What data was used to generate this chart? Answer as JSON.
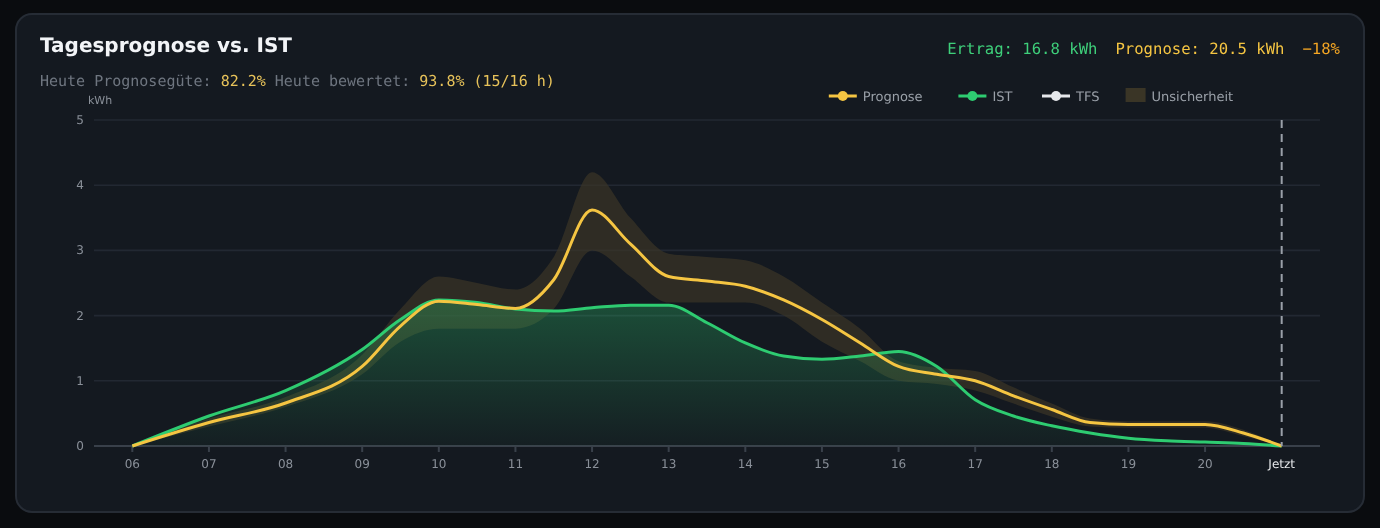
{
  "chart_data": {
    "type": "line",
    "title": "Tagesprognose vs. IST",
    "subtitle": "Heute Prognosegüte: 82.2%  Heute bewertet: 93.8% (15/16 h)",
    "ylabel": "kWh",
    "annotations": [
      "Ertrag: 16.8 kWh",
      "Prognose: 20.5 kWh",
      "−18%"
    ],
    "x": [
      6,
      7,
      8,
      9,
      9.5,
      10,
      10.5,
      11,
      11.5,
      12,
      12.5,
      13,
      13.5,
      14,
      14.5,
      15,
      15.5,
      16,
      16.5,
      17,
      17.5,
      18,
      18.5,
      19,
      19.5,
      20,
      20.5,
      21
    ],
    "xlim": [
      5.5,
      21.5
    ],
    "xticks": [
      {
        "value": 6,
        "label": "06"
      },
      {
        "value": 7,
        "label": "07"
      },
      {
        "value": 8,
        "label": "08"
      },
      {
        "value": 9,
        "label": "09"
      },
      10,
      11,
      12,
      13,
      14,
      15,
      16,
      17,
      18,
      19,
      20
    ],
    "ylim": [
      0,
      5
    ],
    "yticks": [
      0,
      1,
      2,
      3,
      4,
      5
    ],
    "grid": "y",
    "legend": "top right",
    "marker": "none",
    "ref_lines": [
      {
        "axis": "x",
        "value": 21,
        "label": "Jetzt",
        "color": "#9aa0a8",
        "line_style": "dashed"
      }
    ],
    "series": [
      {
        "name": "Prognose",
        "color": "#f5c542",
        "values": [
          0,
          0.36,
          0.66,
          1.22,
          1.84,
          2.22,
          2.17,
          2.11,
          2.55,
          3.62,
          3.1,
          2.6,
          2.53,
          2.45,
          2.24,
          1.94,
          1.58,
          1.22,
          1.1,
          1.0,
          0.77,
          0.56,
          0.36,
          0.33,
          0.33,
          0.33,
          0.2,
          0
        ]
      },
      {
        "name": "IST",
        "type": "area",
        "color": "#2ecc71",
        "values": [
          0,
          0.46,
          0.85,
          1.48,
          1.94,
          2.24,
          2.2,
          2.1,
          2.07,
          2.12,
          2.16,
          2.16,
          1.89,
          1.58,
          1.38,
          1.33,
          1.38,
          1.45,
          1.22,
          0.71,
          0.46,
          0.31,
          0.2,
          0.12,
          0.08,
          0.06,
          0.04,
          0
        ]
      },
      {
        "name": "TFS",
        "color": "#e6e8eb",
        "values": [
          null,
          null,
          null,
          null,
          null,
          null,
          null,
          null,
          null,
          null,
          null,
          null,
          null,
          null,
          null,
          null,
          null,
          null,
          null,
          null,
          null,
          null,
          null,
          null,
          null,
          null,
          null,
          null
        ]
      },
      {
        "name": "Unsicherheit",
        "type": "area",
        "color": "#3a3526",
        "values": [
          null,
          null,
          null,
          null,
          null,
          null,
          null,
          null,
          null,
          null,
          null,
          null,
          null,
          null,
          null,
          null,
          null,
          null,
          null,
          null,
          null,
          null,
          null,
          null,
          null,
          null,
          null,
          null
        ],
        "lower": [
          0,
          0.3,
          0.6,
          1.1,
          1.6,
          1.8,
          1.8,
          1.8,
          2.1,
          3.0,
          2.6,
          2.2,
          2.2,
          2.2,
          2.0,
          1.6,
          1.3,
          1.0,
          0.95,
          0.85,
          0.65,
          0.45,
          0.3,
          0.28,
          0.28,
          0.28,
          0.15,
          0
        ],
        "upper": [
          0,
          0.42,
          0.75,
          1.4,
          2.1,
          2.6,
          2.5,
          2.4,
          2.9,
          4.2,
          3.5,
          2.95,
          2.9,
          2.85,
          2.6,
          2.2,
          1.8,
          1.3,
          1.2,
          1.15,
          0.9,
          0.65,
          0.42,
          0.38,
          0.38,
          0.38,
          0.25,
          0
        ]
      }
    ]
  }
}
